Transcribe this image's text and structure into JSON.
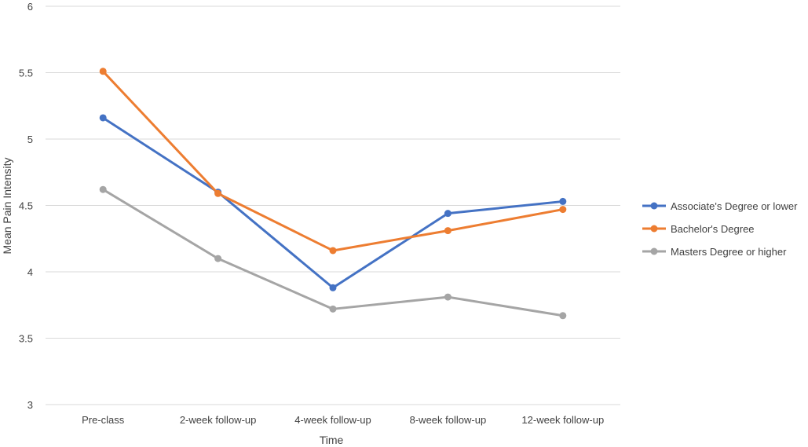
{
  "chart_data": {
    "type": "line",
    "title": "",
    "xlabel": "Time",
    "ylabel": "Mean Pain Intensity",
    "ylim": [
      3,
      6
    ],
    "yticks": [
      "3",
      "3.5",
      "4",
      "4.5",
      "5",
      "5.5",
      "6"
    ],
    "grid": true,
    "legend_position": "right",
    "categories": [
      "Pre-class",
      "2-week follow-up",
      "4-week follow-up",
      "8-week follow-up",
      "12-week follow-up"
    ],
    "series": [
      {
        "name": "Associate's Degree or lower",
        "color": "#4472c4",
        "values": [
          5.16,
          4.6,
          3.88,
          4.44,
          4.53
        ]
      },
      {
        "name": "Bachelor's Degree",
        "color": "#ed7d31",
        "values": [
          5.51,
          4.59,
          4.16,
          4.31,
          4.47
        ]
      },
      {
        "name": "Masters Degree or higher",
        "color": "#a5a5a5",
        "values": [
          4.62,
          4.1,
          3.72,
          3.81,
          3.67
        ]
      }
    ]
  }
}
